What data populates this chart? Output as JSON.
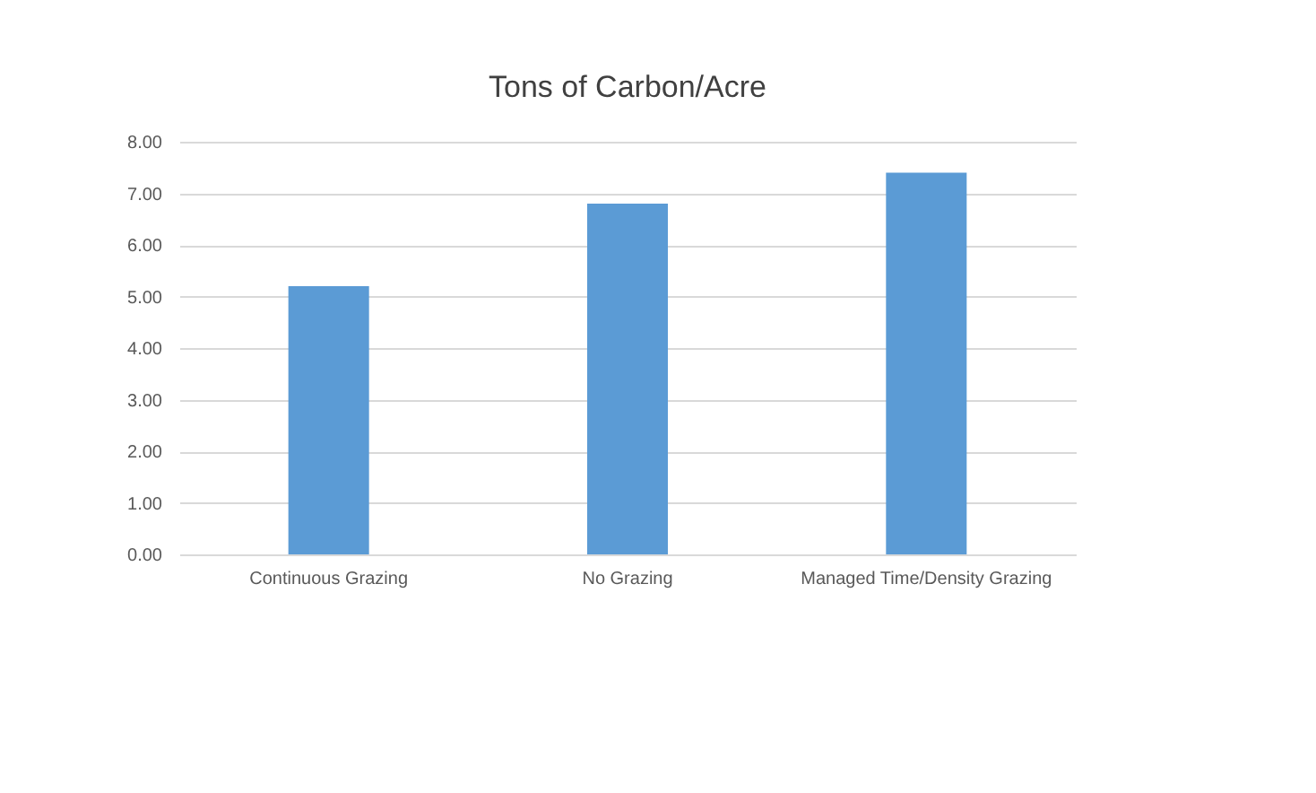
{
  "chart_data": {
    "type": "bar",
    "title": "Tons of Carbon/Acre",
    "categories": [
      "Continuous Grazing",
      "No Grazing",
      "Managed Time/Density Grazing"
    ],
    "values": [
      5.2,
      6.8,
      7.4
    ],
    "color": "#5b9bd5",
    "ylim": [
      0,
      8
    ],
    "yticks": [
      {
        "value": 0,
        "label": "0.00"
      },
      {
        "value": 1,
        "label": "1.00"
      },
      {
        "value": 2,
        "label": "2.00"
      },
      {
        "value": 3,
        "label": "3.00"
      },
      {
        "value": 4,
        "label": "4.00"
      },
      {
        "value": 5,
        "label": "5.00"
      },
      {
        "value": 6,
        "label": "6.00"
      },
      {
        "value": 7,
        "label": "7.00"
      },
      {
        "value": 8,
        "label": "8.00"
      }
    ],
    "grid": "y"
  }
}
